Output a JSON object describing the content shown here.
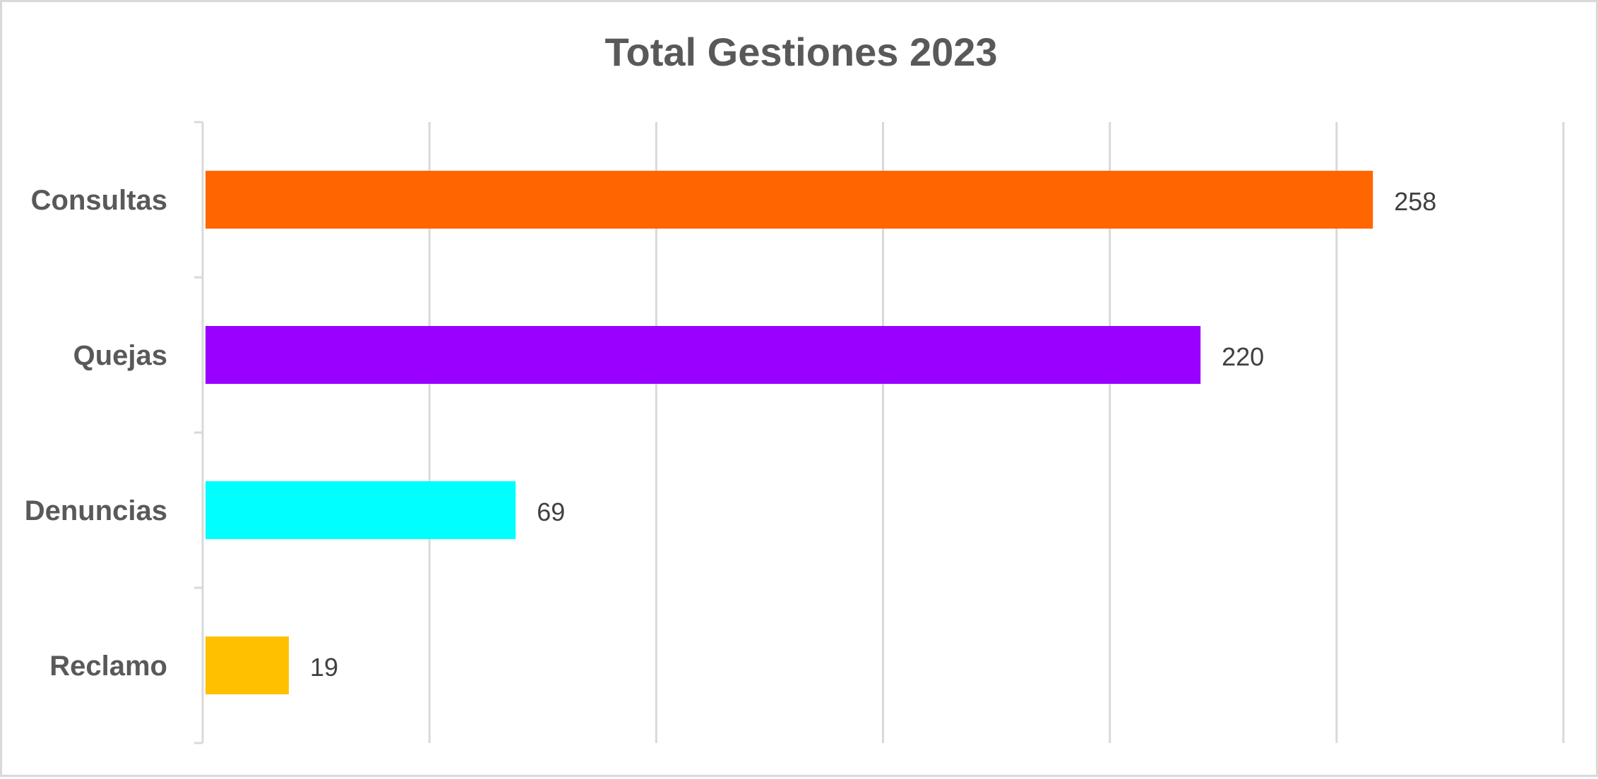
{
  "chart_data": {
    "type": "bar",
    "orientation": "horizontal",
    "title": "Total Gestiones 2023",
    "categories": [
      "Consultas",
      "Quejas",
      "Denuncias",
      "Reclamo"
    ],
    "values": [
      258,
      220,
      69,
      19
    ],
    "colors": [
      "#FF6600",
      "#9900FF",
      "#00FFFF",
      "#FFC000"
    ],
    "xlim": [
      0,
      300
    ],
    "x_gridlines": [
      0,
      50,
      100,
      150,
      200,
      250,
      300
    ],
    "x_tick_labels_visible": false,
    "data_labels": true,
    "grid": true,
    "legend": "none",
    "xlabel": "",
    "ylabel": ""
  }
}
